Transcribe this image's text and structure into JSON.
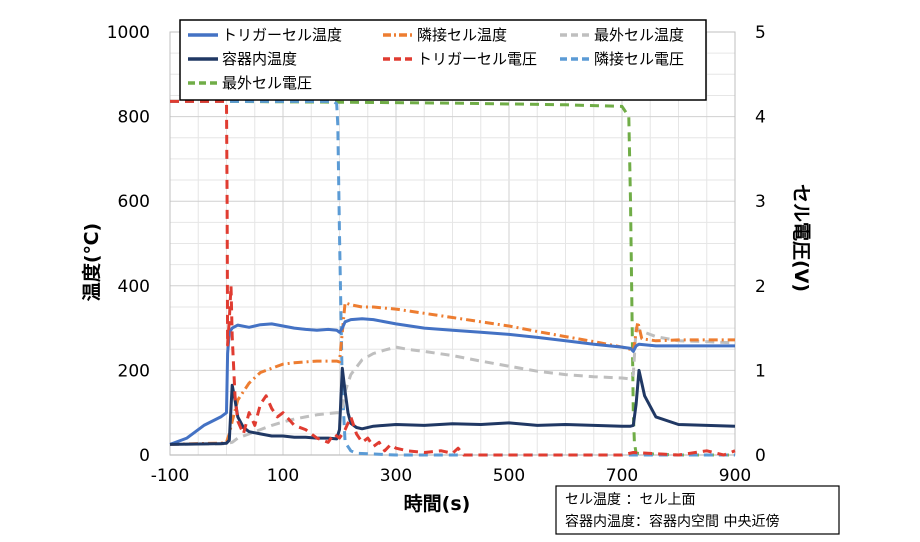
{
  "chart_data": {
    "type": "line",
    "xlabel": "時間(s)",
    "ylabel": "温度(℃)",
    "y2label": "セル電圧(V)",
    "xlim": [
      -100,
      900
    ],
    "ylim": [
      0,
      1000
    ],
    "y2lim": [
      0,
      5
    ],
    "x_ticks": [
      "-100",
      "100",
      "300",
      "500",
      "700",
      "900"
    ],
    "y_ticks": [
      "0",
      "200",
      "400",
      "600",
      "800",
      "1000"
    ],
    "y2_ticks": [
      "0",
      "1",
      "2",
      "3",
      "4",
      "5"
    ],
    "grid": true,
    "legend_position": "top",
    "note_lines": [
      "セル温度 ：セル上面",
      "容器内温度：容器内空間 中央近傍"
    ],
    "series": [
      {
        "name": "トリガーセル温度",
        "axis": "left",
        "color": "#4472c4",
        "style": "solid",
        "x": [
          -100,
          -70,
          -40,
          -10,
          0,
          2,
          5,
          10,
          20,
          40,
          60,
          80,
          100,
          120,
          140,
          160,
          180,
          195,
          200,
          205,
          210,
          220,
          240,
          260,
          300,
          350,
          400,
          450,
          500,
          550,
          600,
          650,
          700,
          715,
          720,
          725,
          730,
          760,
          800,
          850,
          900
        ],
        "y": [
          25,
          40,
          70,
          90,
          100,
          240,
          290,
          300,
          307,
          302,
          308,
          310,
          305,
          300,
          297,
          295,
          297,
          295,
          290,
          300,
          315,
          320,
          322,
          320,
          310,
          300,
          295,
          290,
          285,
          278,
          270,
          262,
          255,
          252,
          245,
          258,
          262,
          258,
          258,
          258,
          258
        ]
      },
      {
        "name": "隣接セル温度",
        "axis": "left",
        "color": "#ed7d31",
        "style": "dashdot",
        "x": [
          -100,
          -50,
          -10,
          0,
          5,
          10,
          20,
          40,
          60,
          80,
          100,
          120,
          140,
          160,
          180,
          195,
          200,
          205,
          210,
          220,
          240,
          260,
          300,
          350,
          400,
          450,
          500,
          550,
          600,
          650,
          700,
          715,
          720,
          725,
          728,
          735,
          760,
          800,
          850,
          900
        ],
        "y": [
          25,
          27,
          28,
          30,
          50,
          80,
          130,
          170,
          195,
          205,
          215,
          218,
          220,
          222,
          222,
          222,
          220,
          290,
          360,
          355,
          350,
          350,
          345,
          335,
          325,
          315,
          305,
          292,
          280,
          268,
          255,
          250,
          245,
          290,
          315,
          275,
          270,
          272,
          272,
          272
        ]
      },
      {
        "name": "最外セル温度",
        "axis": "left",
        "color": "#bfbfbf",
        "style": "dashed",
        "x": [
          -100,
          -50,
          -10,
          0,
          10,
          20,
          40,
          60,
          80,
          100,
          120,
          140,
          160,
          180,
          195,
          200,
          205,
          210,
          220,
          240,
          260,
          280,
          300,
          320,
          350,
          400,
          450,
          500,
          550,
          600,
          650,
          700,
          715,
          720,
          725,
          730,
          760,
          800,
          850,
          900
        ],
        "y": [
          25,
          26,
          26,
          27,
          30,
          40,
          50,
          60,
          70,
          78,
          85,
          90,
          95,
          98,
          100,
          100,
          110,
          150,
          190,
          225,
          240,
          248,
          255,
          250,
          245,
          235,
          222,
          210,
          198,
          190,
          185,
          182,
          180,
          190,
          300,
          295,
          280,
          270,
          268,
          265
        ]
      },
      {
        "name": "容器内温度",
        "axis": "left",
        "color": "#203864",
        "style": "solid",
        "x": [
          -100,
          -50,
          -10,
          0,
          5,
          10,
          15,
          20,
          30,
          40,
          60,
          80,
          100,
          120,
          140,
          160,
          180,
          195,
          200,
          205,
          210,
          215,
          220,
          230,
          240,
          260,
          300,
          350,
          400,
          450,
          500,
          550,
          600,
          650,
          700,
          715,
          720,
          725,
          730,
          740,
          760,
          800,
          850,
          900
        ],
        "y": [
          25,
          26,
          27,
          28,
          35,
          165,
          130,
          90,
          65,
          55,
          50,
          45,
          45,
          42,
          42,
          40,
          40,
          38,
          60,
          205,
          150,
          100,
          75,
          65,
          62,
          68,
          72,
          70,
          74,
          72,
          76,
          70,
          72,
          70,
          68,
          68,
          70,
          120,
          200,
          140,
          90,
          72,
          70,
          68
        ]
      },
      {
        "name": "トリガーセル電圧",
        "axis": "right",
        "color": "#e03c31",
        "style": "dashed",
        "x": [
          -100,
          -50,
          -5,
          0,
          1,
          2,
          5,
          8,
          10,
          15,
          20,
          30,
          40,
          50,
          60,
          70,
          80,
          90,
          100,
          120,
          140,
          160,
          180,
          190,
          200,
          210,
          220,
          230,
          240,
          250,
          260,
          270,
          280,
          290,
          300,
          320,
          350,
          380,
          400,
          410,
          420,
          450,
          500,
          600,
          700,
          720,
          800,
          850,
          880,
          900
        ],
        "y": [
          4.18,
          4.18,
          4.18,
          4.18,
          3.0,
          1.3,
          1.6,
          2.0,
          1.4,
          0.7,
          0.4,
          0.25,
          0.5,
          0.35,
          0.6,
          0.7,
          0.55,
          0.45,
          0.5,
          0.35,
          0.3,
          0.2,
          0.15,
          0.25,
          0.2,
          0.3,
          0.45,
          0.25,
          0.15,
          0.2,
          0.1,
          0.15,
          0.05,
          0.12,
          0.08,
          0.05,
          0.03,
          0.05,
          0.02,
          0.08,
          0.0,
          0.0,
          0.0,
          0.0,
          0.0,
          0.03,
          0.0,
          0.05,
          0.0,
          0.05
        ]
      },
      {
        "name": "隣接セル電圧",
        "axis": "right",
        "color": "#5b9bd5",
        "style": "dashed",
        "x": [
          -100,
          0,
          100,
          190,
          195,
          197,
          200,
          205,
          210,
          220,
          230,
          300,
          400,
          500,
          600,
          700,
          800,
          900
        ],
        "y": [
          4.18,
          4.18,
          4.18,
          4.18,
          4.15,
          3.9,
          2.6,
          0.8,
          0.15,
          0.05,
          0.02,
          0.0,
          0.0,
          0.0,
          0.0,
          0.0,
          0.0,
          0.0
        ]
      },
      {
        "name": "最外セル電圧",
        "axis": "right",
        "color": "#70ad47",
        "style": "dashed",
        "x": [
          -100,
          0,
          200,
          400,
          600,
          700,
          712,
          715,
          718,
          720,
          722,
          725,
          800,
          900
        ],
        "y": [
          4.18,
          4.18,
          4.17,
          4.16,
          4.14,
          4.12,
          4.0,
          3.0,
          1.5,
          0.5,
          0.15,
          0.02,
          0.0,
          0.0
        ]
      }
    ]
  }
}
